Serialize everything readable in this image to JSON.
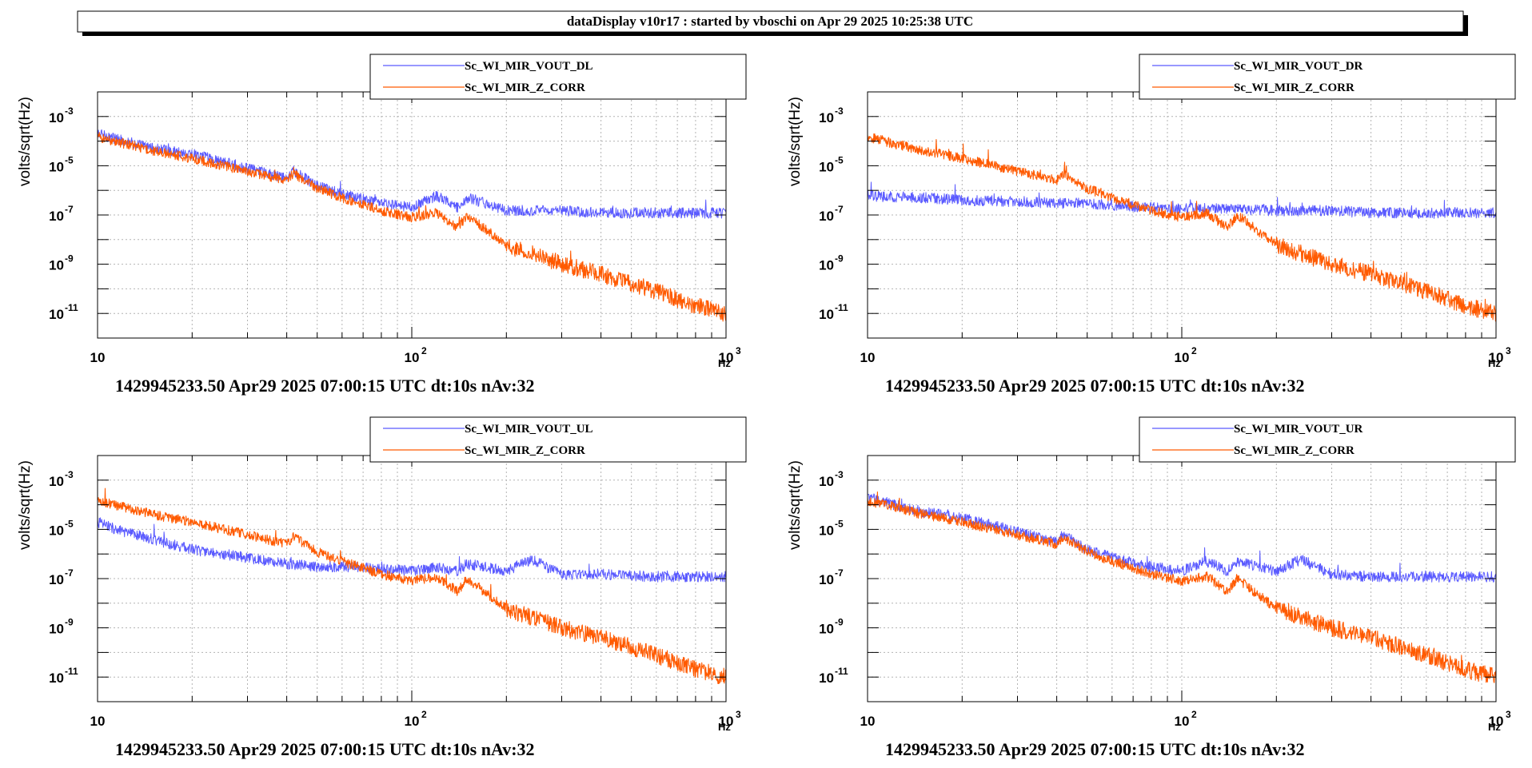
{
  "header": {
    "title": "dataDisplay v10r17 : started by vboschi on Apr 29 2025 10:25:38 UTC"
  },
  "colors": {
    "series_a": "#5a5aff",
    "series_b": "#ff5a00",
    "grid": "#b4b4b4"
  },
  "chart_data": [
    {
      "type": "line",
      "xscale": "log",
      "yscale": "log",
      "xlim": [
        10,
        1000
      ],
      "ylim": [
        1e-12,
        0.01
      ],
      "ylabel": "volts/sqrt(Hz)",
      "xunit": "Hz",
      "xticks": [
        "10",
        "10",
        "10"
      ],
      "xtick_exps": [
        "",
        "2",
        "3"
      ],
      "yticks": [
        "10",
        "10",
        "10",
        "10",
        "10"
      ],
      "ytick_exps": [
        "-3",
        "-5",
        "-7",
        "-9",
        "-11"
      ],
      "footer": "1429945233.50 Apr29 2025 07:00:15 UTC dt:10s nAv:32",
      "legend_placement": "top",
      "grid": true,
      "series": [
        {
          "name": "Sc_WI_MIR_VOUT_DL",
          "color": "#5a5aff",
          "x": [
            10,
            15,
            20,
            30,
            40,
            42,
            50,
            60,
            80,
            100,
            120,
            140,
            150,
            200,
            300,
            400,
            600,
            800,
            1000
          ],
          "y": [
            0.0002,
            5e-05,
            3e-05,
            8e-06,
            3e-06,
            6e-06,
            1.5e-06,
            7e-07,
            3e-07,
            2e-07,
            6e-07,
            2e-07,
            5e-07,
            1.5e-07,
            1.5e-07,
            1.2e-07,
            1.2e-07,
            1.2e-07,
            1.2e-07
          ]
        },
        {
          "name": "Sc_WI_MIR_Z_CORR",
          "color": "#ff5a00",
          "x": [
            10,
            15,
            20,
            30,
            40,
            42,
            50,
            60,
            80,
            100,
            120,
            140,
            150,
            200,
            300,
            400,
            600,
            800,
            1000
          ],
          "y": [
            0.00015,
            4e-05,
            2e-05,
            6e-06,
            2.5e-06,
            5e-06,
            1.2e-06,
            5e-07,
            1.5e-07,
            8e-08,
            1.2e-07,
            3e-08,
            1e-07,
            6e-09,
            1e-09,
            4e-10,
            8e-11,
            2e-11,
            1e-11
          ]
        }
      ]
    },
    {
      "type": "line",
      "xscale": "log",
      "yscale": "log",
      "xlim": [
        10,
        1000
      ],
      "ylim": [
        1e-12,
        0.01
      ],
      "ylabel": "volts/sqrt(Hz)",
      "xunit": "Hz",
      "xticks": [
        "10",
        "10",
        "10"
      ],
      "xtick_exps": [
        "",
        "2",
        "3"
      ],
      "yticks": [
        "10",
        "10",
        "10",
        "10",
        "10"
      ],
      "ytick_exps": [
        "-3",
        "-5",
        "-7",
        "-9",
        "-11"
      ],
      "footer": "1429945233.50 Apr29 2025 07:00:15 UTC dt:10s nAv:32",
      "legend_placement": "top",
      "grid": true,
      "series": [
        {
          "name": "Sc_WI_MIR_VOUT_DR",
          "color": "#5a5aff",
          "x": [
            10,
            15,
            20,
            30,
            40,
            50,
            60,
            80,
            100,
            120,
            140,
            200,
            300,
            400,
            600,
            800,
            1000
          ],
          "y": [
            6e-07,
            5e-07,
            4e-07,
            3.5e-07,
            3e-07,
            3e-07,
            2.5e-07,
            2e-07,
            1.8e-07,
            2e-07,
            1.8e-07,
            1.5e-07,
            1.5e-07,
            1.2e-07,
            1.2e-07,
            1.2e-07,
            1.2e-07
          ]
        },
        {
          "name": "Sc_WI_MIR_Z_CORR",
          "color": "#ff5a00",
          "x": [
            10,
            15,
            20,
            30,
            40,
            42,
            50,
            60,
            80,
            100,
            120,
            140,
            150,
            200,
            300,
            400,
            600,
            800,
            1000
          ],
          "y": [
            0.00015,
            4e-05,
            2e-05,
            6e-06,
            2.5e-06,
            5e-06,
            1.2e-06,
            5e-07,
            1.5e-07,
            8e-08,
            1.2e-07,
            3e-08,
            1e-07,
            6e-09,
            1e-09,
            4e-10,
            8e-11,
            2e-11,
            1e-11
          ]
        }
      ]
    },
    {
      "type": "line",
      "xscale": "log",
      "yscale": "log",
      "xlim": [
        10,
        1000
      ],
      "ylim": [
        1e-12,
        0.01
      ],
      "ylabel": "volts/sqrt(Hz)",
      "xunit": "Hz",
      "xticks": [
        "10",
        "10",
        "10"
      ],
      "xtick_exps": [
        "",
        "2",
        "3"
      ],
      "yticks": [
        "10",
        "10",
        "10",
        "10",
        "10"
      ],
      "ytick_exps": [
        "-3",
        "-5",
        "-7",
        "-9",
        "-11"
      ],
      "footer": "1429945233.50 Apr29 2025 07:00:15 UTC dt:10s nAv:32",
      "legend_placement": "top",
      "grid": true,
      "series": [
        {
          "name": "Sc_WI_MIR_VOUT_UL",
          "color": "#5a5aff",
          "x": [
            10,
            12,
            15,
            20,
            30,
            40,
            50,
            60,
            80,
            100,
            120,
            140,
            150,
            200,
            240,
            300,
            400,
            600,
            800,
            1000
          ],
          "y": [
            2e-05,
            8e-06,
            4e-06,
            1.5e-06,
            7e-07,
            4e-07,
            3e-07,
            3e-07,
            2.5e-07,
            2e-07,
            3e-07,
            2e-07,
            4e-07,
            2e-07,
            6e-07,
            1.5e-07,
            1.5e-07,
            1.2e-07,
            1.2e-07,
            1.2e-07
          ]
        },
        {
          "name": "Sc_WI_MIR_Z_CORR",
          "color": "#ff5a00",
          "x": [
            10,
            15,
            20,
            30,
            40,
            42,
            50,
            60,
            80,
            100,
            120,
            140,
            150,
            200,
            300,
            400,
            600,
            800,
            1000
          ],
          "y": [
            0.00015,
            4e-05,
            2e-05,
            6e-06,
            2.5e-06,
            5e-06,
            1.2e-06,
            5e-07,
            1.5e-07,
            8e-08,
            1.2e-07,
            3e-08,
            1e-07,
            6e-09,
            1e-09,
            4e-10,
            8e-11,
            2e-11,
            1e-11
          ]
        }
      ]
    },
    {
      "type": "line",
      "xscale": "log",
      "yscale": "log",
      "xlim": [
        10,
        1000
      ],
      "ylim": [
        1e-12,
        0.01
      ],
      "ylabel": "volts/sqrt(Hz)",
      "xunit": "Hz",
      "xticks": [
        "10",
        "10",
        "10"
      ],
      "xtick_exps": [
        "",
        "2",
        "3"
      ],
      "yticks": [
        "10",
        "10",
        "10",
        "10",
        "10"
      ],
      "ytick_exps": [
        "-3",
        "-5",
        "-7",
        "-9",
        "-11"
      ],
      "footer": "1429945233.50 Apr29 2025 07:00:15 UTC dt:10s nAv:32",
      "legend_placement": "top",
      "grid": true,
      "series": [
        {
          "name": "Sc_WI_MIR_VOUT_UR",
          "color": "#5a5aff",
          "x": [
            10,
            15,
            20,
            30,
            40,
            42,
            50,
            60,
            80,
            100,
            120,
            140,
            150,
            200,
            240,
            300,
            400,
            600,
            800,
            1000
          ],
          "y": [
            0.0002,
            5e-05,
            3e-05,
            8e-06,
            3e-06,
            6e-06,
            1.5e-06,
            7e-07,
            3e-07,
            2e-07,
            5e-07,
            2e-07,
            5e-07,
            2e-07,
            6e-07,
            1.5e-07,
            1.2e-07,
            1.2e-07,
            1.2e-07,
            1.2e-07
          ]
        },
        {
          "name": "Sc_WI_MIR_Z_CORR",
          "color": "#ff5a00",
          "x": [
            10,
            15,
            20,
            30,
            40,
            42,
            50,
            60,
            80,
            100,
            120,
            140,
            150,
            200,
            300,
            400,
            600,
            800,
            1000
          ],
          "y": [
            0.00015,
            4e-05,
            2e-05,
            6e-06,
            2.5e-06,
            5e-06,
            1.2e-06,
            5e-07,
            1.5e-07,
            8e-08,
            1.2e-07,
            3e-08,
            1e-07,
            6e-09,
            1e-09,
            4e-10,
            8e-11,
            2e-11,
            1e-11
          ]
        }
      ]
    }
  ]
}
